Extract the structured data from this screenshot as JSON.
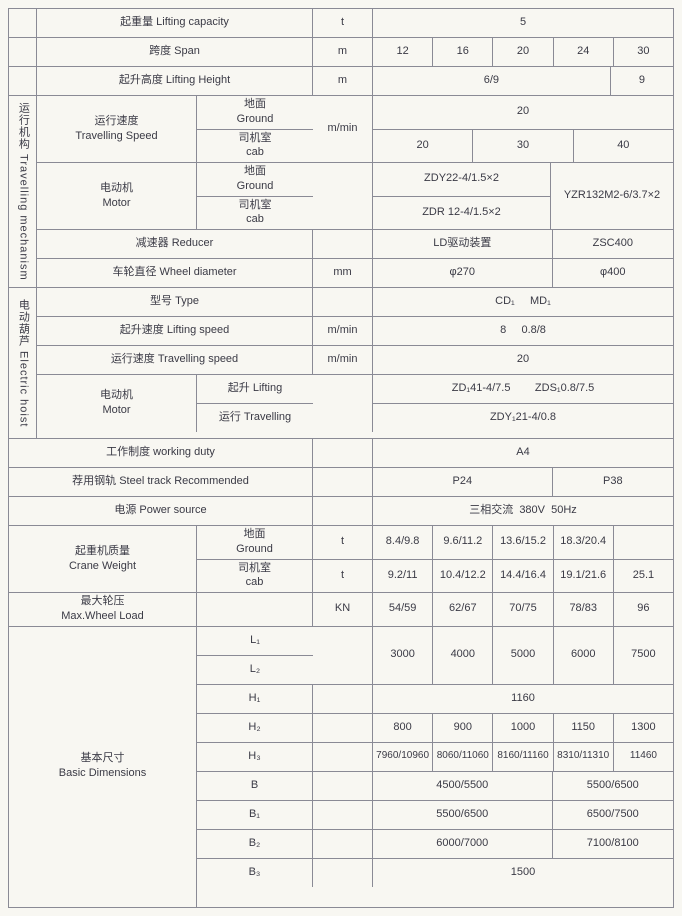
{
  "cap": {
    "zh": "起重量",
    "en": "Lifting capacity",
    "unit": "t",
    "v": "5"
  },
  "span": {
    "zh": "跨度",
    "en": "Span",
    "unit": "m",
    "v": [
      "12",
      "16",
      "20",
      "24",
      "30"
    ]
  },
  "lift": {
    "zh": "起升高度",
    "en": "Lifting Height",
    "unit": "m",
    "v1": "6/9",
    "v2": "9"
  },
  "trav": {
    "title_zh": "运行机构",
    "title_en": "Travelling mechanism",
    "speed": {
      "zh": "运行速度",
      "en": "Travelling Speed",
      "unit": "m/min",
      "ground_zh": "地面",
      "ground_en": "Ground",
      "ground_v": "20",
      "cab_zh": "司机室",
      "cab_en": "cab",
      "cab_v": [
        "20",
        "30",
        "40"
      ]
    },
    "motor": {
      "zh": "电动机",
      "en": "Motor",
      "ground_v": "ZDY22-4/1.5×2",
      "cab_v": "ZDR 12-4/1.5×2",
      "right": "YZR132M2-6/3.7×2"
    },
    "reducer": {
      "zh": "减速器",
      "en": "Reducer",
      "left": "LD驱动装置",
      "right": "ZSC400"
    },
    "wheel": {
      "zh": "车轮直径",
      "en": "Wheel diameter",
      "unit": "mm",
      "left": "φ270",
      "right": "φ400"
    }
  },
  "hoist": {
    "title_zh": "电动葫芦",
    "title_en": "Electric hoist",
    "type": {
      "zh": "型号",
      "en": "Type",
      "v": "CD₁     MD₁"
    },
    "liftspd": {
      "zh": "起升速度",
      "en": "Lifting speed",
      "unit": "m/min",
      "v": "8     0.8/8"
    },
    "travspd": {
      "zh": "运行速度",
      "en": "Travelling speed",
      "unit": "m/min",
      "v": "20"
    },
    "motor": {
      "zh": "电动机",
      "en": "Motor",
      "lift_zh": "起升",
      "lift_en": "Lifting",
      "lift_v": "ZD₁41-4/7.5        ZDS₁0.8/7.5",
      "trav_zh": "运行",
      "trav_en": "Travelling",
      "trav_v": "ZDY₁21-4/0.8"
    }
  },
  "duty": {
    "zh": "工作制度",
    "en": "working duty",
    "v": "A4"
  },
  "rail": {
    "zh": "荐用钢轨",
    "en": "Steel track Recommended",
    "left": "P24",
    "right": "P38"
  },
  "power": {
    "zh": "电源",
    "en": "Power source",
    "v": "三相交流  380V  50Hz"
  },
  "weight": {
    "zh": "起重机质量",
    "en": "Crane Weight",
    "unit": "t",
    "ground": [
      "8.4/9.8",
      "9.6/11.2",
      "13.6/15.2",
      "18.3/20.4",
      ""
    ],
    "cab": [
      "9.2/11",
      "10.4/12.2",
      "14.4/16.4",
      "19.1/21.6",
      "25.1"
    ]
  },
  "maxload": {
    "zh": "最大轮压",
    "en": "Max.Wheel Load",
    "unit": "KN",
    "v": [
      "54/59",
      "62/67",
      "70/75",
      "78/83",
      "96"
    ]
  },
  "dims": {
    "zh": "基本尺寸",
    "en": "Basic Dimensions",
    "L1": {
      "lbl": "L₁",
      "v": [
        "3000",
        "4000",
        "5000",
        "6000",
        "7500"
      ]
    },
    "L2": {
      "lbl": "L₂"
    },
    "H1": {
      "lbl": "H₁",
      "v": "1160"
    },
    "H2": {
      "lbl": "H₂",
      "v": [
        "800",
        "900",
        "1000",
        "1150",
        "1300"
      ]
    },
    "H3": {
      "lbl": "H₃",
      "v": [
        "7960/10960",
        "8060/11060",
        "8160/11160",
        "8310/11310",
        "11460"
      ]
    },
    "B": {
      "lbl": "B",
      "left": "4500/5500",
      "right": "5500/6500"
    },
    "B1": {
      "lbl": "B₁",
      "left": "5500/6500",
      "right": "6500/7500"
    },
    "B2": {
      "lbl": "B₂",
      "left": "6000/7000",
      "right": "7100/8100"
    },
    "B3": {
      "lbl": "B₃",
      "v": "1500"
    }
  },
  "ground_zh": "地面",
  "ground_en": "Ground",
  "cab_zh": "司机室",
  "cab_en": "cab"
}
